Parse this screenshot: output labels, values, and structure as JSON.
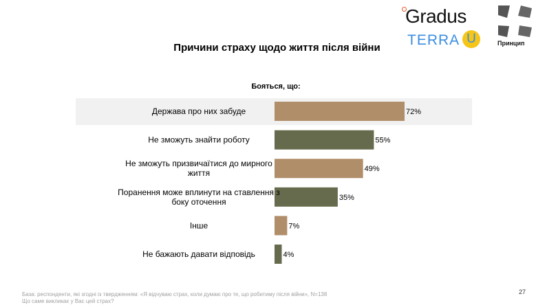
{
  "logos": {
    "gradus": "Gradus",
    "terra": "TERRA",
    "terra_u": "U",
    "pryntsyp": "Принцип"
  },
  "page_number": "27",
  "footnote": [
    "База: респонденти, які згодні із твердженням: «Я відчуваю страх, коли думаю про те, що робитиму після війни», N=138",
    "Що саме викликає у Вас цей страх?"
  ],
  "colors": {
    "tan": "#b08e69",
    "olive": "#666b4d",
    "highlight": "#f1f1f1"
  },
  "chart_data": {
    "type": "bar",
    "orientation": "horizontal",
    "title": "Причини страху щодо життя після війни",
    "subtitle": "Бояться, що:",
    "categories": [
      [
        "Держава про них забуде"
      ],
      [
        "Не зможуть знайти роботу"
      ],
      [
        "Не зможуть призвичаїтися до мирного",
        "життя"
      ],
      [
        "Поранення може вплинути на ставлення з",
        "боку оточення"
      ],
      [
        "Інше"
      ],
      [
        "Не бажають давати відповідь"
      ]
    ],
    "values": [
      72,
      55,
      49,
      35,
      7,
      4
    ],
    "labels": [
      "72%",
      "55%",
      "49%",
      "35%",
      "7%",
      "4%"
    ],
    "bar_colors": [
      "#b08e69",
      "#666b4d",
      "#b08e69",
      "#666b4d",
      "#b08e69",
      "#666b4d"
    ],
    "highlighted": [
      0
    ],
    "unit": "%",
    "xlim": [
      0,
      100
    ],
    "grid": false
  }
}
